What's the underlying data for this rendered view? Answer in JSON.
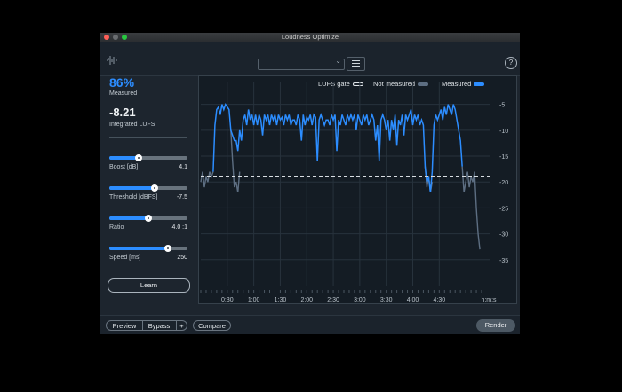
{
  "window": {
    "title": "Loudness Optimize"
  },
  "meters": {
    "measured_percent": "86%",
    "measured_label": "Measured",
    "integrated_value": "-8.21",
    "integrated_label": "Integrated LUFS"
  },
  "controls": [
    {
      "label": "Boost [dB]",
      "value": "4.1",
      "position": 0.37
    },
    {
      "label": "Threshold [dBFS]",
      "value": "-7.5",
      "position": 0.58
    },
    {
      "label": "Ratio",
      "value": "4.0 :1",
      "position": 0.5
    },
    {
      "label": "Speed [ms]",
      "value": "250",
      "position": 0.75
    }
  ],
  "learn_button": "Learn",
  "legend": {
    "gate": "LUFS gate",
    "not_measured": "Not measured",
    "measured": "Measured"
  },
  "time_axis": [
    "0:30",
    "1:00",
    "1:30",
    "2:00",
    "2:30",
    "3:00",
    "3:30",
    "4:00",
    "4:30",
    "h:m:s"
  ],
  "level_axis": [
    "-5",
    "-10",
    "-15",
    "-20",
    "-25",
    "-30",
    "-35"
  ],
  "bottom": {
    "preview": "Preview",
    "bypass": "Bypass",
    "plus": "+",
    "compare": "Compare",
    "render": "Render"
  },
  "colors": {
    "accent": "#2c8dff",
    "not_measured": "#5d6e82",
    "gate": "#d8dde2"
  },
  "chart_data": {
    "type": "line",
    "x_unit": "h:m:s",
    "xlim_seconds": [
      0,
      320
    ],
    "ylim": [
      -40,
      -3
    ],
    "gate": -19,
    "measured": [
      [
        14,
        -18
      ],
      [
        16,
        -9
      ],
      [
        18,
        -6
      ],
      [
        20,
        -5.5
      ],
      [
        22,
        -7
      ],
      [
        24,
        -5
      ],
      [
        26,
        -6
      ],
      [
        28,
        -5
      ],
      [
        30,
        -5.5
      ],
      [
        32,
        -6
      ],
      [
        34,
        -10
      ],
      [
        38,
        -12
      ],
      [
        40,
        -12
      ],
      [
        42,
        -14
      ],
      [
        44,
        -10
      ],
      [
        46,
        -12
      ],
      [
        48,
        -8
      ],
      [
        50,
        -7
      ],
      [
        52,
        -9
      ],
      [
        54,
        -6
      ],
      [
        56,
        -8
      ],
      [
        58,
        -7
      ],
      [
        60,
        -9
      ],
      [
        62,
        -7
      ],
      [
        64,
        -9
      ],
      [
        66,
        -7
      ],
      [
        68,
        -8
      ],
      [
        70,
        -11
      ],
      [
        72,
        -7
      ],
      [
        74,
        -8
      ],
      [
        76,
        -7
      ],
      [
        78,
        -9
      ],
      [
        80,
        -7
      ],
      [
        82,
        -8
      ],
      [
        84,
        -7
      ],
      [
        86,
        -9
      ],
      [
        88,
        -7
      ],
      [
        90,
        -8
      ],
      [
        92,
        -7.5
      ],
      [
        94,
        -9
      ],
      [
        96,
        -7
      ],
      [
        98,
        -8
      ],
      [
        100,
        -7
      ],
      [
        102,
        -9
      ],
      [
        104,
        -8
      ],
      [
        106,
        -8
      ],
      [
        108,
        -9
      ],
      [
        110,
        -7
      ],
      [
        112,
        -8
      ],
      [
        114,
        -12
      ],
      [
        116,
        -7
      ],
      [
        118,
        -9
      ],
      [
        120,
        -7.5
      ],
      [
        122,
        -8
      ],
      [
        124,
        -7
      ],
      [
        126,
        -9
      ],
      [
        128,
        -7
      ],
      [
        130,
        -7.5
      ],
      [
        132,
        -16
      ],
      [
        134,
        -8
      ],
      [
        136,
        -7
      ],
      [
        138,
        -8
      ],
      [
        140,
        -9
      ],
      [
        142,
        -8
      ],
      [
        144,
        -8
      ],
      [
        146,
        -9
      ],
      [
        148,
        -7
      ],
      [
        150,
        -8
      ],
      [
        152,
        -7
      ],
      [
        154,
        -14
      ],
      [
        156,
        -8
      ],
      [
        158,
        -9
      ],
      [
        160,
        -7
      ],
      [
        162,
        -8
      ],
      [
        164,
        -9
      ],
      [
        166,
        -7
      ],
      [
        168,
        -8
      ],
      [
        170,
        -7
      ],
      [
        172,
        -8
      ],
      [
        174,
        -7
      ],
      [
        176,
        -10
      ],
      [
        178,
        -7
      ],
      [
        180,
        -8
      ],
      [
        182,
        -9
      ],
      [
        184,
        -7
      ],
      [
        186,
        -8
      ],
      [
        188,
        -7
      ],
      [
        190,
        -9
      ],
      [
        192,
        -8
      ],
      [
        194,
        -7
      ],
      [
        196,
        -8
      ],
      [
        198,
        -12
      ],
      [
        200,
        -9
      ],
      [
        202,
        -16
      ],
      [
        204,
        -8
      ],
      [
        206,
        -7
      ],
      [
        208,
        -8
      ],
      [
        210,
        -10
      ],
      [
        212,
        -8
      ],
      [
        214,
        -12
      ],
      [
        216,
        -8
      ],
      [
        218,
        -10
      ],
      [
        220,
        -7
      ],
      [
        222,
        -13
      ],
      [
        224,
        -8
      ],
      [
        226,
        -9
      ],
      [
        228,
        -7
      ],
      [
        230,
        -11
      ],
      [
        232,
        -7
      ],
      [
        234,
        -8
      ],
      [
        236,
        -7
      ],
      [
        238,
        -6
      ],
      [
        240,
        -9
      ],
      [
        242,
        -7
      ],
      [
        244,
        -8
      ],
      [
        246,
        -7
      ],
      [
        248,
        -9
      ],
      [
        250,
        -8
      ],
      [
        252,
        -9
      ],
      [
        254,
        -17
      ],
      [
        256,
        -20
      ],
      [
        258,
        -19
      ],
      [
        260,
        -22
      ],
      [
        262,
        -18
      ],
      [
        264,
        -9
      ],
      [
        266,
        -7
      ],
      [
        268,
        -8
      ],
      [
        270,
        -7
      ],
      [
        272,
        -6
      ],
      [
        274,
        -8
      ],
      [
        276,
        -5.5
      ],
      [
        278,
        -7
      ],
      [
        280,
        -5
      ],
      [
        282,
        -6
      ],
      [
        284,
        -7
      ],
      [
        286,
        -5
      ],
      [
        288,
        -6
      ],
      [
        290,
        -8
      ],
      [
        292,
        -10
      ],
      [
        294,
        -12
      ],
      [
        296,
        -17
      ]
    ],
    "not_measured": [
      [
        0,
        -20
      ],
      [
        2,
        -18
      ],
      [
        4,
        -21
      ],
      [
        6,
        -19
      ],
      [
        8,
        -20
      ],
      [
        10,
        -18
      ],
      [
        12,
        -19
      ],
      [
        14,
        -18
      ],
      [
        34,
        -10
      ],
      [
        36,
        -16
      ],
      [
        38,
        -21
      ],
      [
        40,
        -20
      ],
      [
        42,
        -22
      ],
      [
        44,
        -18
      ],
      [
        254,
        -17
      ],
      [
        256,
        -21
      ],
      [
        258,
        -19
      ],
      [
        260,
        -22
      ],
      [
        262,
        -20
      ],
      [
        296,
        -17
      ],
      [
        298,
        -22
      ],
      [
        300,
        -20
      ],
      [
        302,
        -18
      ],
      [
        304,
        -21
      ],
      [
        306,
        -19
      ],
      [
        308,
        -20
      ],
      [
        310,
        -18
      ],
      [
        312,
        -25
      ],
      [
        314,
        -30
      ],
      [
        316,
        -33
      ]
    ]
  }
}
